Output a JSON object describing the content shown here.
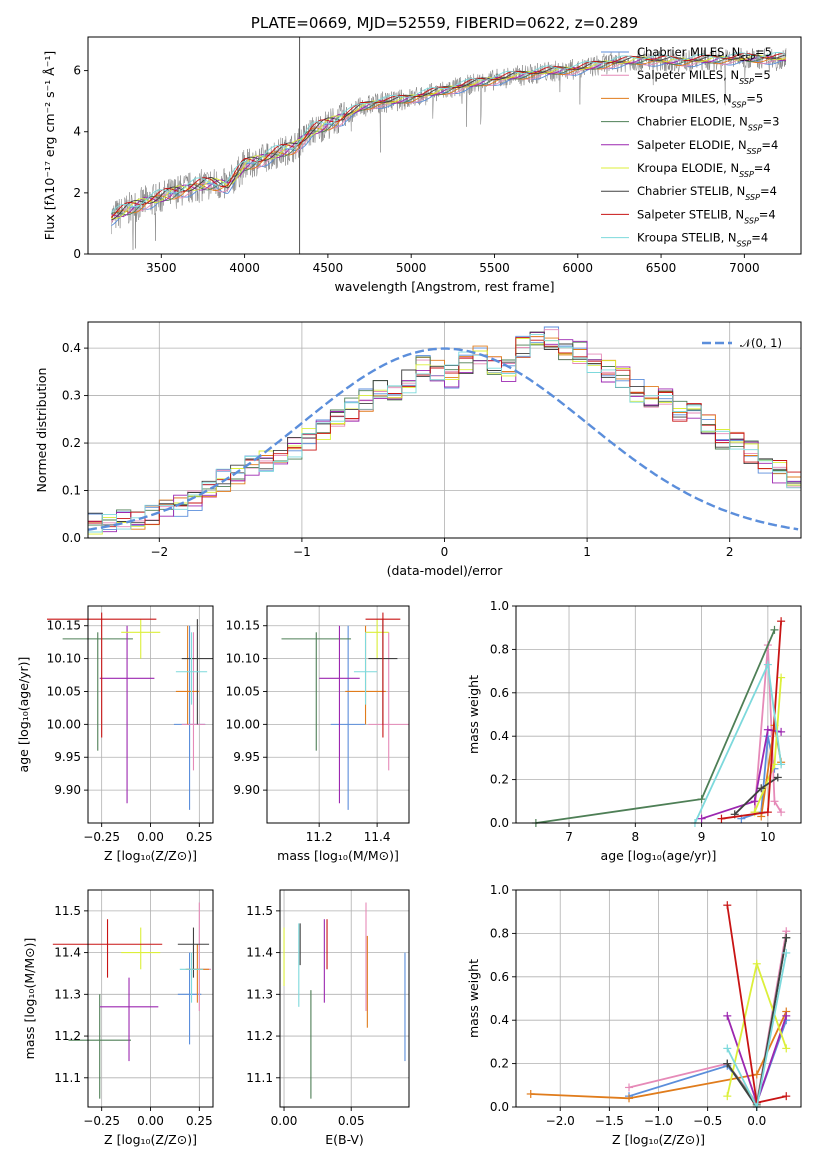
{
  "chart_data": [
    {
      "id": "spectrum",
      "type": "line",
      "title": "PLATE=0669, MJD=52559, FIBERID=0622, z=0.289",
      "xlabel": "wavelength [Angstrom, rest frame]",
      "ylabel": "Flux [fλ10⁻¹⁷ erg cm⁻² s⁻¹ Å⁻¹]",
      "xlim": [
        3060,
        7340
      ],
      "ylim": [
        0,
        7.1
      ],
      "xticks": [
        3500,
        4000,
        4500,
        5000,
        5500,
        6000,
        6500,
        7000
      ],
      "yticks": [
        0,
        2,
        4,
        6
      ],
      "data_trace": {
        "name": "",
        "color": "#808080"
      },
      "continuum": {
        "x": [
          3200,
          3300,
          3400,
          3500,
          3600,
          3700,
          3800,
          3900,
          4000,
          4100,
          4200,
          4300,
          4400,
          4500,
          4600,
          4700,
          4800,
          4900,
          5000,
          5200,
          5400,
          5600,
          5800,
          6000,
          6200,
          6400,
          6600,
          6800,
          7000,
          7200
        ],
        "y": [
          1.2,
          1.45,
          1.7,
          1.85,
          2.05,
          2.2,
          2.3,
          2.25,
          2.9,
          3.1,
          3.3,
          3.5,
          4.0,
          4.25,
          4.5,
          4.8,
          4.95,
          5.0,
          5.1,
          5.35,
          5.6,
          5.8,
          5.95,
          6.05,
          6.25,
          6.35,
          6.3,
          6.35,
          6.4,
          6.4
        ]
      },
      "legend_placement": "right",
      "series": [
        {
          "name": "Chabrier MILES, N",
          "sub": "SSP",
          "tail": "=5",
          "color": "#5b8edb"
        },
        {
          "name": "Salpeter MILES, N",
          "sub": "SSP",
          "tail": "=5",
          "color": "#e68ab8"
        },
        {
          "name": "Kroupa MILES, N",
          "sub": "SSP",
          "tail": "=5",
          "color": "#e07c1c"
        },
        {
          "name": "Chabrier ELODIE, N",
          "sub": "SSP",
          "tail": "=3",
          "color": "#4e7f56"
        },
        {
          "name": "Salpeter ELODIE, N",
          "sub": "SSP",
          "tail": "=4",
          "color": "#9c27b0"
        },
        {
          "name": "Kroupa ELODIE, N",
          "sub": "SSP",
          "tail": "=4",
          "color": "#dcef3a"
        },
        {
          "name": "Chabrier STELIB, N",
          "sub": "SSP",
          "tail": "=4",
          "color": "#404040"
        },
        {
          "name": "Salpeter STELIB, N",
          "sub": "SSP",
          "tail": "=4",
          "color": "#c81414"
        },
        {
          "name": "Kroupa STELIB, N",
          "sub": "SSP",
          "tail": "=4",
          "color": "#7dd9dc"
        }
      ]
    },
    {
      "id": "residuals",
      "type": "histogram",
      "xlabel": "(data-model)/error",
      "ylabel": "Normed distribution",
      "xlim": [
        -2.5,
        2.5
      ],
      "ylim": [
        0,
        0.455
      ],
      "xticks": [
        -2,
        -1,
        0,
        1,
        2
      ],
      "yticks": [
        0.0,
        0.1,
        0.2,
        0.3,
        0.4
      ],
      "grid": true,
      "legend": {
        "label": "𝒩(0, 1)",
        "placement": "top-right",
        "color": "#5b8edb"
      },
      "bin_edges_start": -2.5,
      "bin_width": 0.1,
      "reference_hist": [
        0.03,
        0.03,
        0.04,
        0.04,
        0.05,
        0.06,
        0.07,
        0.08,
        0.1,
        0.12,
        0.13,
        0.15,
        0.16,
        0.17,
        0.19,
        0.21,
        0.23,
        0.25,
        0.27,
        0.29,
        0.31,
        0.3,
        0.33,
        0.36,
        0.35,
        0.34,
        0.37,
        0.38,
        0.36,
        0.35,
        0.4,
        0.41,
        0.42,
        0.4,
        0.39,
        0.37,
        0.35,
        0.34,
        0.31,
        0.3,
        0.29,
        0.27,
        0.26,
        0.24,
        0.21,
        0.2,
        0.18,
        0.16,
        0.14,
        0.13,
        0.11,
        0.1,
        0.09,
        0.07,
        0.06,
        0.05,
        0.05,
        0.04,
        0.03,
        0.03
      ]
    },
    {
      "id": "age-vs-z",
      "type": "errorbar",
      "xlabel": "Z [log₁₀(Z/Z⊙)]",
      "ylabel": "age  [log₁₀(age/yr)]",
      "xlim": [
        -0.32,
        0.32
      ],
      "ylim": [
        9.85,
        10.18
      ],
      "xticks": [
        -0.25,
        0.0,
        0.25
      ],
      "yticks": [
        9.9,
        9.95,
        10.0,
        10.05,
        10.1,
        10.15
      ],
      "grid": true,
      "points": [
        {
          "x": 0.2,
          "y": 10.0,
          "xerr": 0.08,
          "yerr": [
            0.13,
            0.15
          ],
          "color": "#5b8edb"
        },
        {
          "x": 0.22,
          "y": 10.0,
          "xerr": 0.06,
          "yerr": [
            0.07,
            0.14
          ],
          "color": "#e68ab8"
        },
        {
          "x": 0.19,
          "y": 10.05,
          "xerr": 0.06,
          "yerr": [
            0.05,
            0.1
          ],
          "color": "#e07c1c"
        },
        {
          "x": -0.27,
          "y": 10.13,
          "xerr": 0.18,
          "yerr": [
            0.17,
            0.01
          ],
          "color": "#4e7f56"
        },
        {
          "x": -0.12,
          "y": 10.07,
          "xerr": 0.14,
          "yerr": [
            0.19,
            0.08
          ],
          "color": "#9c27b0"
        },
        {
          "x": -0.05,
          "y": 10.14,
          "xerr": 0.1,
          "yerr": [
            0.04,
            0.02
          ],
          "color": "#dcef3a"
        },
        {
          "x": 0.24,
          "y": 10.1,
          "xerr": 0.08,
          "yerr": [
            0.1,
            0.06
          ],
          "color": "#404040"
        },
        {
          "x": -0.25,
          "y": 10.16,
          "xerr": 0.28,
          "yerr": [
            0.18,
            0.01
          ],
          "color": "#c81414"
        },
        {
          "x": 0.21,
          "y": 10.08,
          "xerr": 0.08,
          "yerr": [
            0.05,
            0.06
          ],
          "color": "#7dd9dc"
        }
      ]
    },
    {
      "id": "age-vs-mass",
      "type": "errorbar",
      "xlabel": "mass [log₁₀(M/M⊙)]",
      "ylabel": "",
      "xlim": [
        11.02,
        11.51
      ],
      "ylim": [
        9.85,
        10.18
      ],
      "xticks": [
        11.2,
        11.4
      ],
      "yticks": [
        9.9,
        9.95,
        10.0,
        10.05,
        10.1,
        10.15
      ],
      "grid": true,
      "points": [
        {
          "x": 11.3,
          "y": 10.0,
          "xerr": 0.06,
          "yerr": [
            0.13,
            0.15
          ],
          "color": "#5b8edb"
        },
        {
          "x": 11.44,
          "y": 10.0,
          "xerr": 0.07,
          "yerr": [
            0.07,
            0.14
          ],
          "color": "#e68ab8"
        },
        {
          "x": 11.36,
          "y": 10.05,
          "xerr": 0.07,
          "yerr": [
            0.05,
            0.1
          ],
          "color": "#e07c1c"
        },
        {
          "x": 11.19,
          "y": 10.13,
          "xerr": 0.12,
          "yerr": [
            0.17,
            0.01
          ],
          "color": "#4e7f56"
        },
        {
          "x": 11.27,
          "y": 10.07,
          "xerr": 0.07,
          "yerr": [
            0.19,
            0.08
          ],
          "color": "#9c27b0"
        },
        {
          "x": 11.4,
          "y": 10.14,
          "xerr": 0.04,
          "yerr": [
            0.04,
            0.02
          ],
          "color": "#dcef3a"
        },
        {
          "x": 11.42,
          "y": 10.1,
          "xerr": 0.05,
          "yerr": [
            0.1,
            0.06
          ],
          "color": "#404040"
        },
        {
          "x": 11.42,
          "y": 10.16,
          "xerr": 0.06,
          "yerr": [
            0.18,
            0.01
          ],
          "color": "#c81414"
        },
        {
          "x": 11.36,
          "y": 10.08,
          "xerr": 0.04,
          "yerr": [
            0.05,
            0.06
          ],
          "color": "#7dd9dc"
        }
      ]
    },
    {
      "id": "weight-vs-age",
      "type": "line",
      "xlabel": "age  [log₁₀(age/yr)]",
      "ylabel": "mass weight",
      "xlim": [
        6.2,
        10.5
      ],
      "ylim": [
        0,
        1.0
      ],
      "xticks": [
        7,
        8,
        9,
        10
      ],
      "yticks": [
        0.0,
        0.2,
        0.4,
        0.6,
        0.8,
        1.0
      ],
      "grid": true,
      "series": [
        {
          "color": "#5b8edb",
          "x": [
            9.6,
            9.9,
            10.0,
            10.1
          ],
          "y": [
            0.02,
            0.05,
            0.4,
            0.25
          ]
        },
        {
          "color": "#e68ab8",
          "x": [
            9.8,
            10.0,
            10.1,
            10.2
          ],
          "y": [
            0.05,
            0.82,
            0.1,
            0.05
          ]
        },
        {
          "color": "#e07c1c",
          "x": [
            9.9,
            10.1,
            10.2
          ],
          "y": [
            0.03,
            0.45,
            0.28
          ]
        },
        {
          "color": "#4e7f56",
          "x": [
            6.5,
            9.0,
            10.1
          ],
          "y": [
            0.0,
            0.11,
            0.89
          ]
        },
        {
          "color": "#9c27b0",
          "x": [
            9.0,
            9.8,
            10.0,
            10.2
          ],
          "y": [
            0.02,
            0.1,
            0.43,
            0.42
          ]
        },
        {
          "color": "#dcef3a",
          "x": [
            9.8,
            10.1,
            10.2
          ],
          "y": [
            0.05,
            0.27,
            0.67
          ]
        },
        {
          "color": "#404040",
          "x": [
            9.5,
            9.9,
            10.15
          ],
          "y": [
            0.04,
            0.16,
            0.21
          ]
        },
        {
          "color": "#c81414",
          "x": [
            9.3,
            10.0,
            10.2
          ],
          "y": [
            0.02,
            0.05,
            0.93
          ]
        },
        {
          "color": "#7dd9dc",
          "x": [
            8.9,
            10.0,
            10.2
          ],
          "y": [
            0.0,
            0.73,
            0.27
          ]
        }
      ]
    },
    {
      "id": "mass-vs-z",
      "type": "errorbar",
      "xlabel": "Z [log₁₀(Z/Z⊙)]",
      "ylabel": "mass [log₁₀(M/M⊙)]",
      "xlim": [
        -0.32,
        0.32
      ],
      "ylim": [
        11.03,
        11.55
      ],
      "xticks": [
        -0.25,
        0.0,
        0.25
      ],
      "yticks": [
        11.1,
        11.2,
        11.3,
        11.4,
        11.5
      ],
      "grid": true,
      "points": [
        {
          "x": 0.2,
          "y": 11.3,
          "xerr": 0.06,
          "yerr": [
            0.12,
            0.1
          ],
          "color": "#5b8edb"
        },
        {
          "x": 0.25,
          "y": 11.36,
          "xerr": 0.06,
          "yerr": [
            0.1,
            0.16
          ],
          "color": "#e68ab8"
        },
        {
          "x": 0.24,
          "y": 11.36,
          "xerr": 0.06,
          "yerr": [
            0.08,
            0.06
          ],
          "color": "#e07c1c"
        },
        {
          "x": -0.26,
          "y": 11.19,
          "xerr": 0.16,
          "yerr": [
            0.14,
            0.11
          ],
          "color": "#4e7f56"
        },
        {
          "x": -0.11,
          "y": 11.27,
          "xerr": 0.15,
          "yerr": [
            0.13,
            0.07
          ],
          "color": "#9c27b0"
        },
        {
          "x": -0.05,
          "y": 11.4,
          "xerr": 0.1,
          "yerr": [
            0.04,
            0.06
          ],
          "color": "#dcef3a"
        },
        {
          "x": 0.22,
          "y": 11.42,
          "xerr": 0.08,
          "yerr": [
            0.08,
            0.04
          ],
          "color": "#404040"
        },
        {
          "x": -0.22,
          "y": 11.42,
          "xerr": 0.28,
          "yerr": [
            0.08,
            0.06
          ],
          "color": "#c81414"
        },
        {
          "x": 0.21,
          "y": 11.36,
          "xerr": 0.06,
          "yerr": [
            0.08,
            0.04
          ],
          "color": "#7dd9dc"
        }
      ]
    },
    {
      "id": "mass-vs-ebv",
      "type": "errorbar",
      "xlabel": "E(B-V)",
      "ylabel": "",
      "xlim": [
        -0.003,
        0.093
      ],
      "ylim": [
        11.03,
        11.55
      ],
      "xticks": [
        0.0,
        0.05
      ],
      "yticks": [
        11.1,
        11.2,
        11.3,
        11.4,
        11.5
      ],
      "grid": true,
      "points": [
        {
          "x": 0.09,
          "y": 11.27,
          "xerr": 0,
          "yerr": [
            0.13,
            0.13
          ],
          "color": "#5b8edb"
        },
        {
          "x": 0.061,
          "y": 11.39,
          "xerr": 0,
          "yerr": [
            0.13,
            0.13
          ],
          "color": "#e68ab8"
        },
        {
          "x": 0.062,
          "y": 11.33,
          "xerr": 0,
          "yerr": [
            0.11,
            0.11
          ],
          "color": "#e07c1c"
        },
        {
          "x": 0.02,
          "y": 11.18,
          "xerr": 0,
          "yerr": [
            0.13,
            0.13
          ],
          "color": "#4e7f56"
        },
        {
          "x": 0.03,
          "y": 11.38,
          "xerr": 0,
          "yerr": [
            0.1,
            0.1
          ],
          "color": "#9c27b0"
        },
        {
          "x": 0.0,
          "y": 11.39,
          "xerr": 0,
          "yerr": [
            0.07,
            0.07
          ],
          "color": "#dcef3a"
        },
        {
          "x": 0.012,
          "y": 11.42,
          "xerr": 0,
          "yerr": [
            0.05,
            0.05
          ],
          "color": "#404040"
        },
        {
          "x": 0.032,
          "y": 11.42,
          "xerr": 0,
          "yerr": [
            0.06,
            0.06
          ],
          "color": "#c81414"
        },
        {
          "x": 0.011,
          "y": 11.37,
          "xerr": 0,
          "yerr": [
            0.1,
            0.1
          ],
          "color": "#7dd9dc"
        }
      ]
    },
    {
      "id": "weight-vs-z",
      "type": "line",
      "xlabel": "Z [log₁₀(Z/Z⊙)]",
      "ylabel": "mass weight",
      "xlim": [
        -2.45,
        0.45
      ],
      "ylim": [
        0,
        1.0
      ],
      "xticks": [
        -2.0,
        -1.5,
        -1.0,
        -0.5,
        0.0
      ],
      "yticks": [
        0.0,
        0.2,
        0.4,
        0.6,
        0.8,
        1.0
      ],
      "grid": true,
      "series": [
        {
          "color": "#5b8edb",
          "x": [
            -1.3,
            -0.3,
            0.0,
            0.3
          ],
          "y": [
            0.05,
            0.19,
            0.02,
            0.4
          ]
        },
        {
          "color": "#e68ab8",
          "x": [
            -1.3,
            -0.3,
            0.0,
            0.3
          ],
          "y": [
            0.09,
            0.2,
            0.02,
            0.81
          ]
        },
        {
          "color": "#e07c1c",
          "x": [
            -2.3,
            -1.3,
            0.0,
            0.3
          ],
          "y": [
            0.06,
            0.04,
            0.15,
            0.44
          ]
        },
        {
          "color": "#4e7f56",
          "x": [
            -0.3,
            0.0,
            0.3
          ],
          "y": [
            0.2,
            0.01,
            0.78
          ]
        },
        {
          "color": "#9c27b0",
          "x": [
            -0.3,
            0.0,
            0.3
          ],
          "y": [
            0.42,
            0.02,
            0.42
          ]
        },
        {
          "color": "#dcef3a",
          "x": [
            -0.3,
            0.0,
            0.3
          ],
          "y": [
            0.05,
            0.66,
            0.27
          ]
        },
        {
          "color": "#404040",
          "x": [
            -0.3,
            0.0,
            0.3
          ],
          "y": [
            0.2,
            0.0,
            0.78
          ]
        },
        {
          "color": "#c81414",
          "x": [
            -0.3,
            0.0,
            0.3
          ],
          "y": [
            0.93,
            0.02,
            0.05
          ]
        },
        {
          "color": "#7dd9dc",
          "x": [
            -0.3,
            0.0,
            0.3
          ],
          "y": [
            0.27,
            0.0,
            0.71
          ]
        }
      ]
    }
  ]
}
